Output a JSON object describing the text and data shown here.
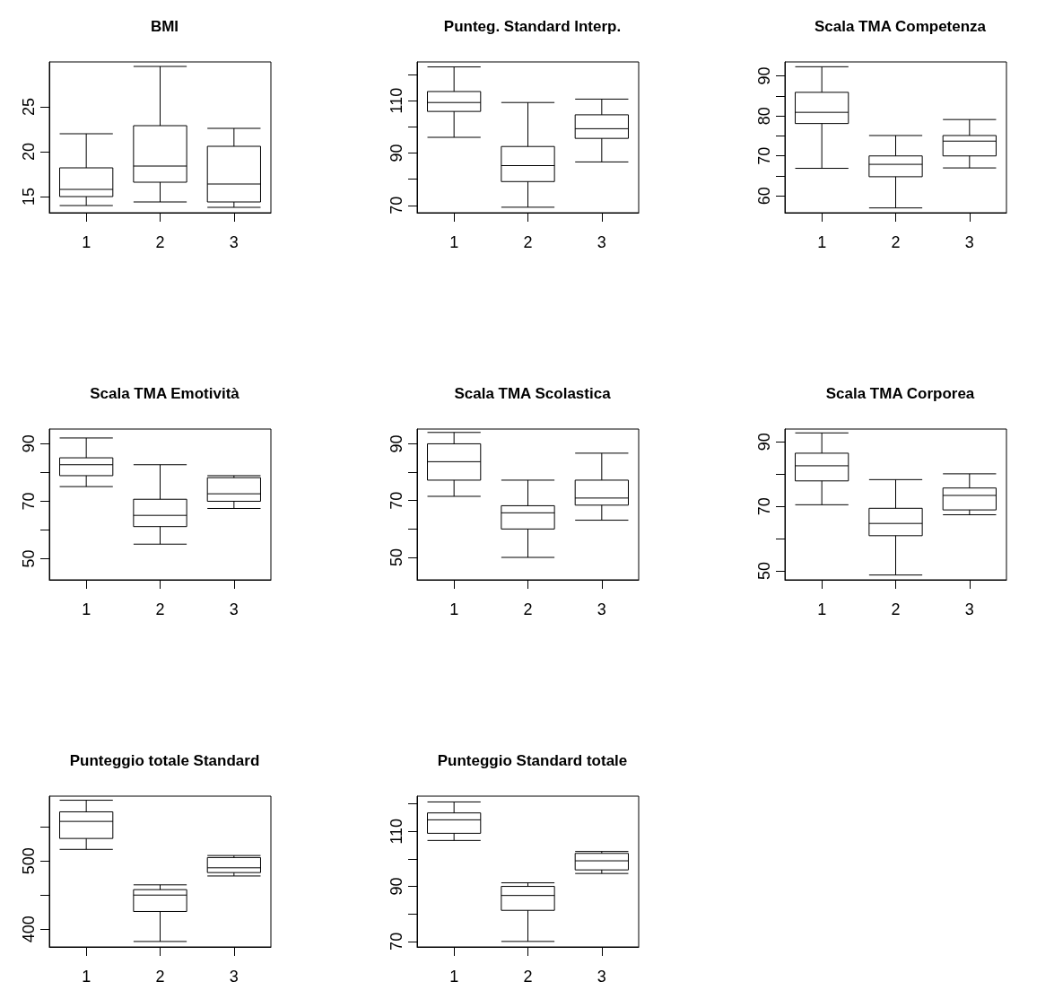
{
  "chart_data": [
    {
      "type": "box",
      "title": "BMI",
      "categories": [
        "1",
        "2",
        "3"
      ],
      "ylim": [
        13.2,
        30
      ],
      "yticks": [
        15,
        20,
        25
      ],
      "boxes": [
        {
          "low": 14.0,
          "q1": 15.0,
          "median": 15.8,
          "q3": 18.2,
          "high": 22.0
        },
        {
          "low": 14.4,
          "q1": 16.6,
          "median": 18.4,
          "q3": 22.9,
          "high": 29.5
        },
        {
          "low": 13.8,
          "q1": 14.4,
          "median": 16.4,
          "q3": 20.6,
          "high": 22.6
        }
      ]
    },
    {
      "type": "box",
      "title": "Punteg. Standard Interp.",
      "categories": [
        "1",
        "2",
        "3"
      ],
      "ylim": [
        67.2,
        124.8
      ],
      "yticks": [
        70,
        {
          "value": 80,
          "label": null
        },
        90,
        {
          "value": 100,
          "label": null
        },
        110,
        {
          "value": 120,
          "label": null
        }
      ],
      "boxes": [
        {
          "low": 96.0,
          "q1": 105.9,
          "median": 109.3,
          "q3": 113.5,
          "high": 122.9
        },
        {
          "low": 69.3,
          "q1": 79.1,
          "median": 85.2,
          "q3": 92.5,
          "high": 109.3
        },
        {
          "low": 86.6,
          "q1": 95.6,
          "median": 99.3,
          "q3": 104.6,
          "high": 110.6
        }
      ]
    },
    {
      "type": "box",
      "title": "Scala TMA Competenza",
      "categories": [
        "1",
        "2",
        "3"
      ],
      "ylim": [
        55.8,
        93.5
      ],
      "yticks": [
        60,
        {
          "value": 65,
          "label": null
        },
        70,
        {
          "value": 75,
          "label": null
        },
        80,
        {
          "value": 85,
          "label": null
        },
        90
      ],
      "boxes": [
        {
          "low": 66.9,
          "q1": 78.1,
          "median": 80.9,
          "q3": 85.9,
          "high": 92.3
        },
        {
          "low": 57.0,
          "q1": 64.8,
          "median": 67.9,
          "q3": 70.0,
          "high": 75.1
        },
        {
          "low": 67.0,
          "q1": 70.0,
          "median": 73.7,
          "q3": 75.1,
          "high": 79.1
        }
      ]
    },
    {
      "type": "box",
      "title": "Scala TMA Emotività",
      "categories": [
        "1",
        "2",
        "3"
      ],
      "ylim": [
        42.7,
        95.1
      ],
      "yticks": [
        50,
        {
          "value": 60,
          "label": null
        },
        70,
        {
          "value": 80,
          "label": null
        },
        90
      ],
      "boxes": [
        {
          "low": 75.1,
          "q1": 78.9,
          "median": 82.7,
          "q3": 85.1,
          "high": 92.0
        },
        {
          "low": 55.1,
          "q1": 61.2,
          "median": 65.1,
          "q3": 70.7,
          "high": 82.7
        },
        {
          "low": 67.5,
          "q1": 70.0,
          "median": 72.6,
          "q3": 78.2,
          "high": 78.9
        }
      ]
    },
    {
      "type": "box",
      "title": "Scala TMA Scolastica",
      "categories": [
        "1",
        "2",
        "3"
      ],
      "ylim": [
        42.1,
        95.2
      ],
      "yticks": [
        50,
        {
          "value": 60,
          "label": null
        },
        70,
        {
          "value": 80,
          "label": null
        },
        90
      ],
      "boxes": [
        {
          "low": 71.5,
          "q1": 77.2,
          "median": 83.7,
          "q3": 90.0,
          "high": 94.0
        },
        {
          "low": 50.0,
          "q1": 60.0,
          "median": 65.7,
          "q3": 68.2,
          "high": 77.2
        },
        {
          "low": 63.1,
          "q1": 68.4,
          "median": 70.9,
          "q3": 77.2,
          "high": 86.7
        }
      ]
    },
    {
      "type": "box",
      "title": "Scala TMA Corporea",
      "categories": [
        "1",
        "2",
        "3"
      ],
      "ylim": [
        47.2,
        94.0
      ],
      "yticks": [
        50,
        {
          "value": 60,
          "label": null
        },
        70,
        {
          "value": 80,
          "label": null
        },
        90
      ],
      "boxes": [
        {
          "low": 70.5,
          "q1": 77.9,
          "median": 82.6,
          "q3": 86.5,
          "high": 92.8
        },
        {
          "low": 48.7,
          "q1": 60.9,
          "median": 64.7,
          "q3": 69.4,
          "high": 78.3
        },
        {
          "low": 67.4,
          "q1": 68.9,
          "median": 73.4,
          "q3": 75.7,
          "high": 80.1
        }
      ]
    },
    {
      "type": "box",
      "title": "Punteggio totale Standard",
      "categories": [
        "1",
        "2",
        "3"
      ],
      "ylim": [
        374,
        595
      ],
      "yticks": [
        400,
        {
          "value": 450,
          "label": null
        },
        500,
        {
          "value": 550,
          "label": null
        }
      ],
      "boxes": [
        {
          "low": 517,
          "q1": 533,
          "median": 558,
          "q3": 572,
          "high": 589
        },
        {
          "low": 382,
          "q1": 426,
          "median": 450,
          "q3": 458,
          "high": 465
        },
        {
          "low": 478,
          "q1": 483,
          "median": 490,
          "q3": 505,
          "high": 508
        }
      ]
    },
    {
      "type": "box",
      "title": "Punteggio Standard totale",
      "categories": [
        "1",
        "2",
        "3"
      ],
      "ylim": [
        68.0,
        122.8
      ],
      "yticks": [
        70,
        {
          "value": 80,
          "label": null
        },
        90,
        {
          "value": 100,
          "label": null
        },
        110,
        {
          "value": 120,
          "label": null
        }
      ],
      "boxes": [
        {
          "low": 106.7,
          "q1": 109.3,
          "median": 114.2,
          "q3": 116.7,
          "high": 120.7
        },
        {
          "low": 70.0,
          "q1": 81.3,
          "median": 86.7,
          "q3": 90.0,
          "high": 91.3
        },
        {
          "low": 94.7,
          "q1": 96.0,
          "median": 99.3,
          "q3": 102.0,
          "high": 102.7
        }
      ]
    }
  ]
}
